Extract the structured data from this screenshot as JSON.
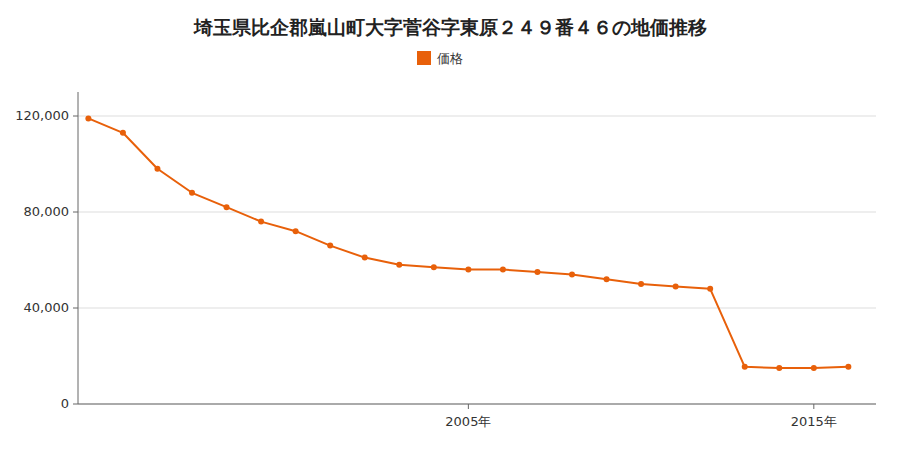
{
  "chart_data": {
    "type": "line",
    "title": "埼玉県比企郡嵐山町大字菅谷字東原２４９番４６の地価推移",
    "x": [
      1994,
      1995,
      1996,
      1997,
      1998,
      1999,
      2000,
      2001,
      2002,
      2003,
      2004,
      2005,
      2006,
      2007,
      2008,
      2009,
      2010,
      2011,
      2012,
      2013,
      2014,
      2015,
      2016
    ],
    "series": [
      {
        "name": "価格",
        "color": "#E8600A",
        "values": [
          119000,
          113000,
          98000,
          88000,
          82000,
          76000,
          72000,
          66000,
          61000,
          58000,
          57000,
          56000,
          56000,
          55000,
          54000,
          52000,
          50000,
          49000,
          48000,
          15500,
          15000,
          15000,
          15500
        ]
      }
    ],
    "xlim": [
      1993.7,
      2016.8
    ],
    "xticks": [
      {
        "value": 2005,
        "label": "2005年"
      },
      {
        "value": 2015,
        "label": "2015年"
      }
    ],
    "ylim": [
      0,
      130000
    ],
    "yticks": [
      0,
      {
        "value": 40000,
        "label": "40,000"
      },
      {
        "value": 80000,
        "label": "80,000"
      },
      {
        "value": 120000,
        "label": "120,000"
      }
    ],
    "grid": true,
    "legend": "top",
    "marker": "circle"
  }
}
